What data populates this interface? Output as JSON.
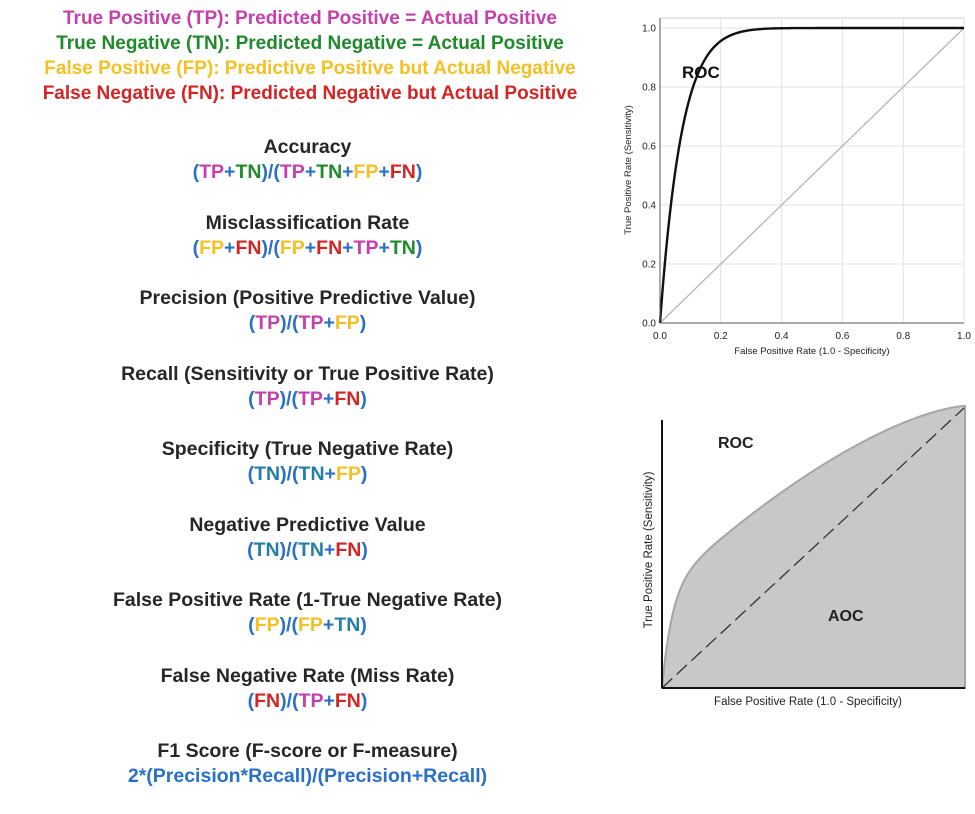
{
  "definitions": [
    {
      "text": "True Positive (TP): Predicted Positive = Actual Positive",
      "color": "#c53fad"
    },
    {
      "text": "True Negative (TN): Predicted Negative = Actual Positive",
      "color": "#1f8a2b"
    },
    {
      "text": "False Positive (FP):  Predictive Positive but Actual Negative",
      "color": "#f5c024"
    },
    {
      "text": "False Negative (FN):  Predicted Negative but Actual Positive",
      "color": "#d42424"
    }
  ],
  "metrics": [
    {
      "name": "Accuracy",
      "formula": [
        [
          "(",
          "paren"
        ],
        [
          "TP",
          "TP"
        ],
        [
          "+",
          "op"
        ],
        [
          "TN",
          "TN"
        ],
        [
          ")/(",
          "paren"
        ],
        [
          "TP",
          "TP"
        ],
        [
          "+",
          "op"
        ],
        [
          "TN",
          "TN"
        ],
        [
          "+",
          "op"
        ],
        [
          "FP",
          "FP"
        ],
        [
          "+",
          "op"
        ],
        [
          "FN",
          "FN"
        ],
        [
          ")",
          "paren"
        ]
      ]
    },
    {
      "name": "Misclassification Rate",
      "formula": [
        [
          "(",
          "paren"
        ],
        [
          "FP",
          "FP"
        ],
        [
          "+",
          "op"
        ],
        [
          "FN",
          "FN"
        ],
        [
          ")/(",
          "paren"
        ],
        [
          "FP",
          "FP"
        ],
        [
          "+",
          "op"
        ],
        [
          "FN",
          "FN"
        ],
        [
          "+",
          "op"
        ],
        [
          "TP",
          "TP"
        ],
        [
          "+",
          "op"
        ],
        [
          "TN",
          "TN"
        ],
        [
          ")",
          "paren"
        ]
      ]
    },
    {
      "name": "Precision (Positive Predictive Value)",
      "formula": [
        [
          "(",
          "paren"
        ],
        [
          "TP",
          "TP"
        ],
        [
          ")/(",
          "paren"
        ],
        [
          "TP",
          "TP"
        ],
        [
          "+",
          "op"
        ],
        [
          "FP",
          "FP"
        ],
        [
          ")",
          "paren"
        ]
      ]
    },
    {
      "name": "Recall (Sensitivity or True Positive Rate)",
      "formula": [
        [
          "(",
          "paren"
        ],
        [
          "TP",
          "TP"
        ],
        [
          ")/(",
          "paren"
        ],
        [
          "TP",
          "TP"
        ],
        [
          "+",
          "op"
        ],
        [
          "FN",
          "FN"
        ],
        [
          ")",
          "paren"
        ]
      ]
    },
    {
      "name": "Specificity (True Negative Rate)",
      "formula": [
        [
          "(",
          "paren"
        ],
        [
          "TN",
          "TNb"
        ],
        [
          ")/(",
          "paren"
        ],
        [
          "TN",
          "TNb"
        ],
        [
          "+",
          "op"
        ],
        [
          "FP",
          "FP"
        ],
        [
          ")",
          "paren"
        ]
      ]
    },
    {
      "name": "Negative Predictive Value",
      "formula": [
        [
          "(",
          "paren"
        ],
        [
          "TN",
          "TNb"
        ],
        [
          ")/(",
          "paren"
        ],
        [
          "TN",
          "TNb"
        ],
        [
          "+",
          "op"
        ],
        [
          "FN",
          "FN"
        ],
        [
          ")",
          "paren"
        ]
      ]
    },
    {
      "name": "False Positive Rate (1-True Negative Rate)",
      "formula": [
        [
          "(",
          "paren"
        ],
        [
          "FP",
          "FP"
        ],
        [
          ")/(",
          "paren"
        ],
        [
          "FP",
          "FP"
        ],
        [
          "+",
          "op"
        ],
        [
          "TN",
          "TNb"
        ],
        [
          ")",
          "paren"
        ]
      ]
    },
    {
      "name": "False Negative Rate (Miss Rate)",
      "formula": [
        [
          "(",
          "paren"
        ],
        [
          "FN",
          "FN"
        ],
        [
          ")/(",
          "paren"
        ],
        [
          "TP",
          "TP"
        ],
        [
          "+",
          "op"
        ],
        [
          "FN",
          "FN"
        ],
        [
          ")",
          "paren"
        ]
      ]
    },
    {
      "name": "F1 Score (F-score or F-measure)",
      "formula": [
        [
          "2*(Precision*Recall)/(Precision+Recall)",
          "text"
        ]
      ]
    }
  ],
  "roc_chart": {
    "curve_label": "ROC",
    "xlabel": "False Positive Rate (1.0 - Specificity)",
    "ylabel": "True Positive Rate (Sensitivity)",
    "xticks": [
      "0.0",
      "0.2",
      "0.4",
      "0.6",
      "0.8",
      "1.0"
    ],
    "yticks": [
      "0.0",
      "0.2",
      "0.4",
      "0.6",
      "0.8",
      "1.0"
    ]
  },
  "aoc_chart": {
    "curve_label": "ROC",
    "area_label": "AOC",
    "xlabel": "False Positive Rate (1.0 - Specificity)",
    "ylabel": "True Positive Rate (Sensitivity)"
  }
}
